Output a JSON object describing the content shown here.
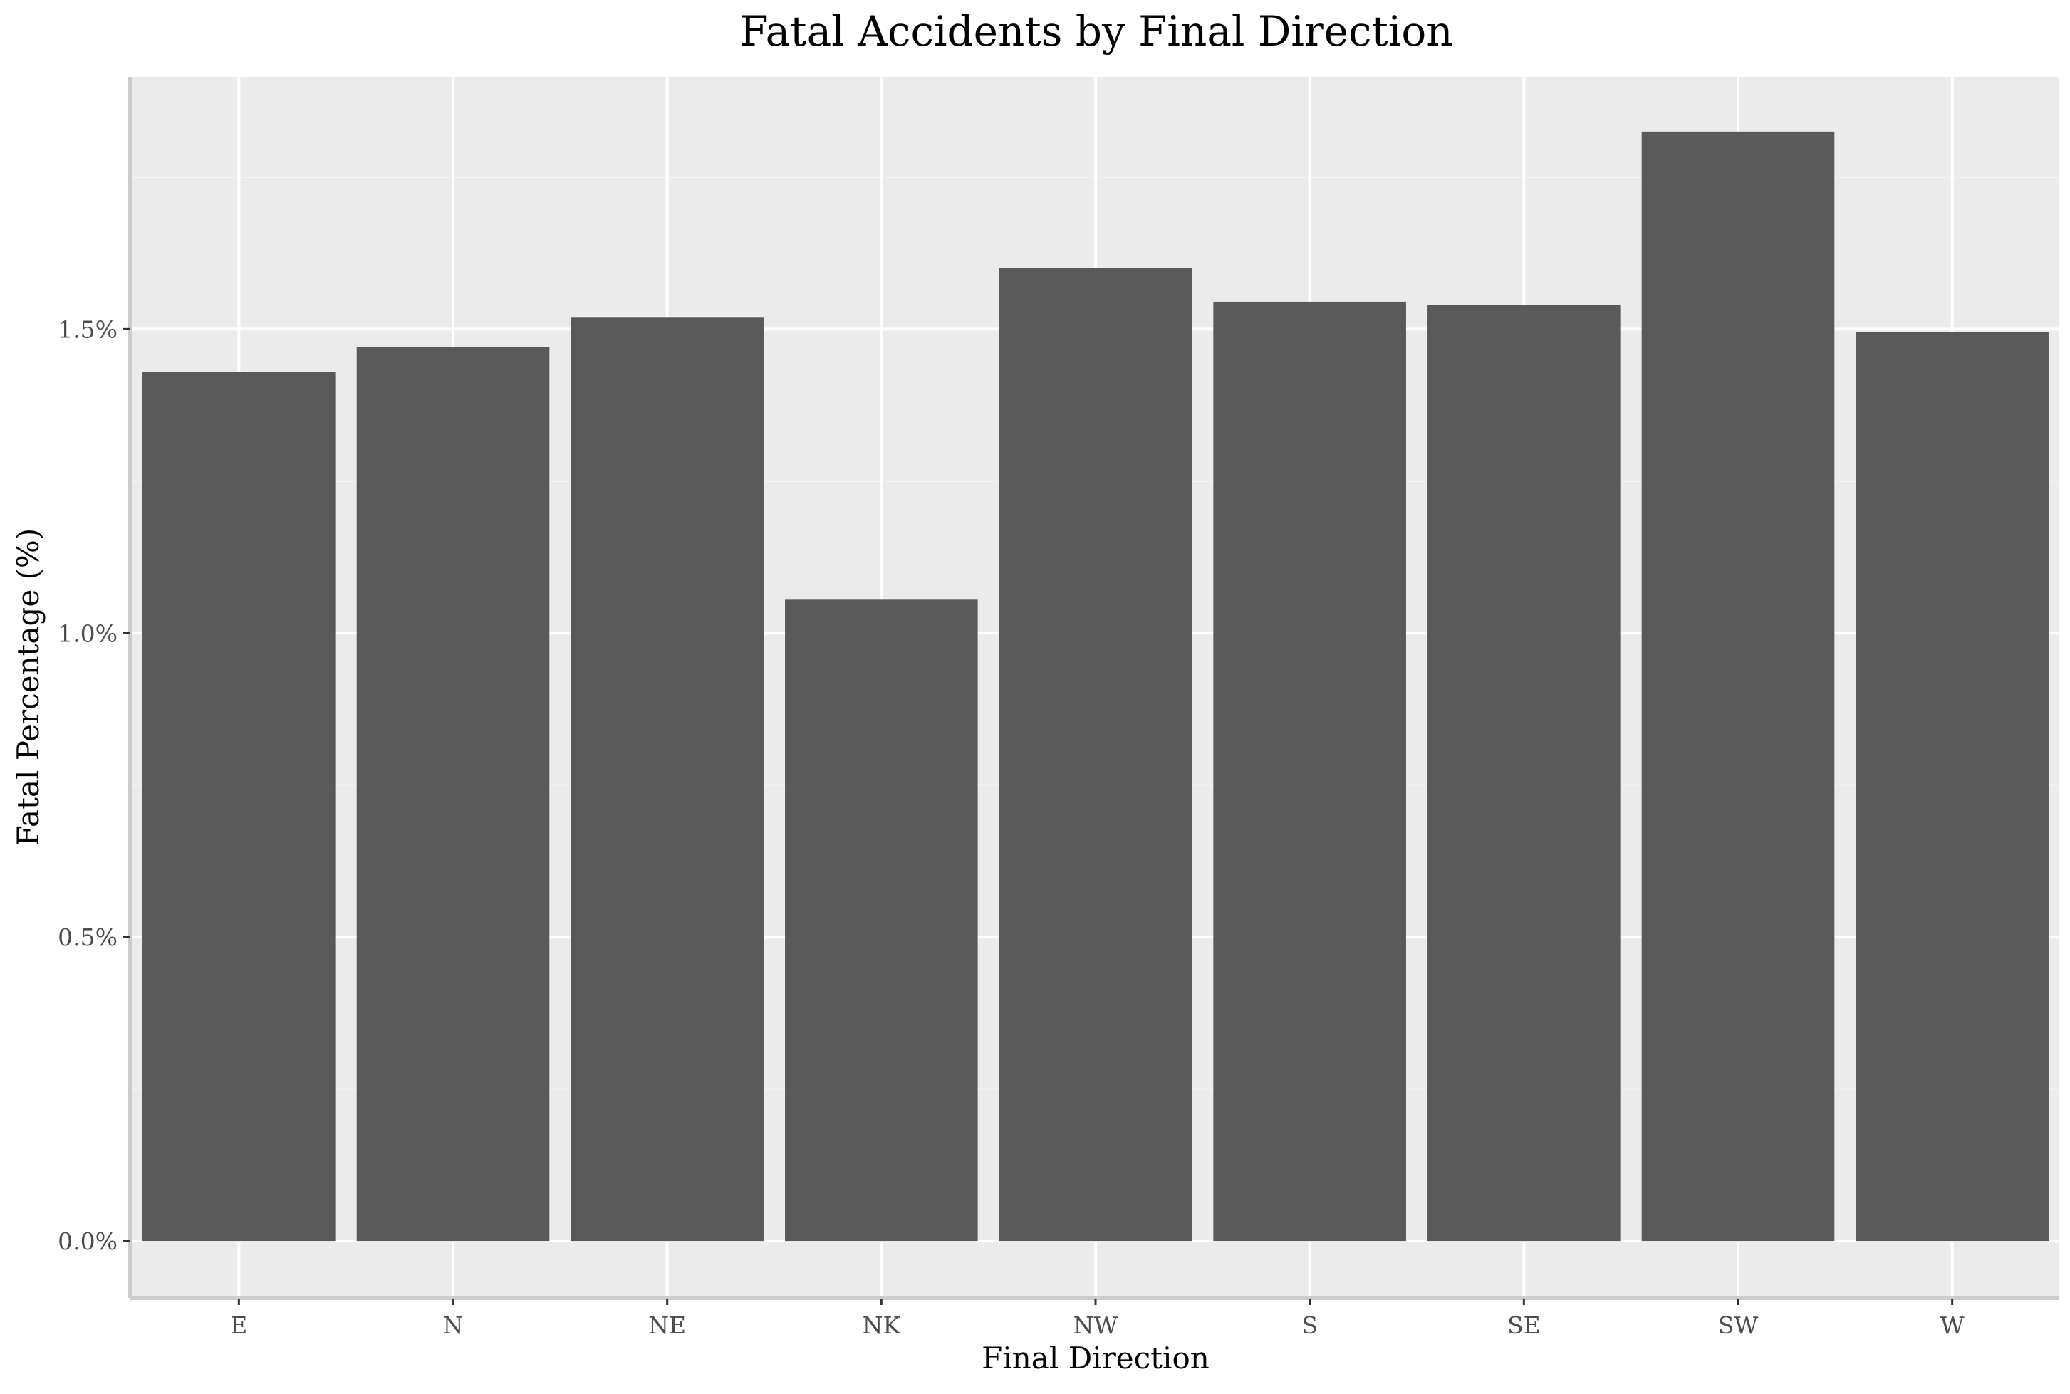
{
  "chart_data": {
    "type": "bar",
    "title": "Fatal Accidents by Final Direction",
    "xlabel": "Final Direction",
    "ylabel": "Fatal Percentage (%)",
    "categories": [
      "E",
      "N",
      "NE",
      "NK",
      "NW",
      "S",
      "SE",
      "SW",
      "W"
    ],
    "values": [
      1.43,
      1.47,
      1.52,
      1.055,
      1.6,
      1.545,
      1.54,
      1.825,
      1.495
    ],
    "ylim": [
      -0.09,
      1.915
    ],
    "yticks": [
      0.0,
      0.5,
      1.0,
      1.5
    ],
    "ytick_labels": [
      "0.0%",
      "0.5%",
      "1.0%",
      "1.5%"
    ],
    "grid": true,
    "legend": "none",
    "colors": {
      "bar": "#595959",
      "panel": "#ebebeb",
      "grid_major": "#ffffff",
      "grid_minor": "#f5f5f5",
      "axis_line": "#cccccc",
      "tick": "#333333"
    }
  }
}
